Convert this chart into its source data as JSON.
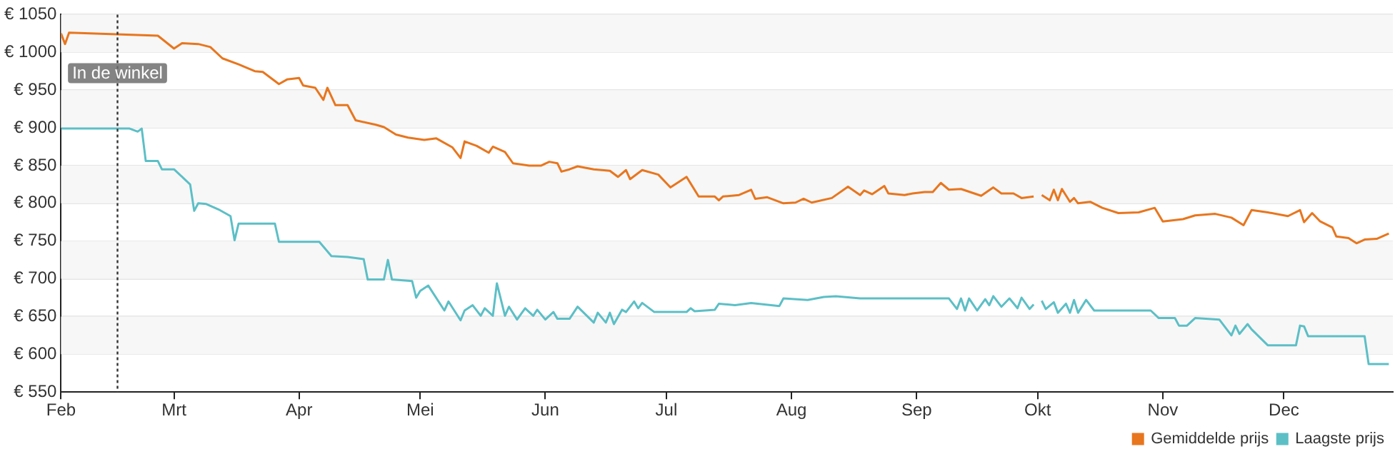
{
  "chart_data": {
    "type": "line",
    "legend": "bottom right",
    "grid": "y",
    "marker": "none",
    "line_style": "solid",
    "xlim": [
      "--02-01",
      "--12-28"
    ],
    "xticks": [
      {
        "value": "--02-01",
        "label": "Feb"
      },
      {
        "value": "--03-01",
        "label": "Mrt"
      },
      {
        "value": "--04-01",
        "label": "Apr"
      },
      {
        "value": "--05-01",
        "label": "Mei"
      },
      {
        "value": "--06-01",
        "label": "Jun"
      },
      {
        "value": "--07-01",
        "label": "Jul"
      },
      {
        "value": "--08-01",
        "label": "Aug"
      },
      {
        "value": "--09-01",
        "label": "Sep"
      },
      {
        "value": "--10-01",
        "label": "Okt"
      },
      {
        "value": "--11-01",
        "label": "Nov"
      },
      {
        "value": "--12-01",
        "label": "Dec"
      }
    ],
    "ylim": [
      550,
      1050
    ],
    "yticks": [
      {
        "value": 550,
        "label": "€ 550"
      },
      {
        "value": 600,
        "label": "€ 600"
      },
      {
        "value": 650,
        "label": "€ 650"
      },
      {
        "value": 700,
        "label": "€ 700"
      },
      {
        "value": 750,
        "label": "€ 750"
      },
      {
        "value": 800,
        "label": "€ 800"
      },
      {
        "value": 850,
        "label": "€ 850"
      },
      {
        "value": 900,
        "label": "€ 900"
      },
      {
        "value": 950,
        "label": "€ 950"
      },
      {
        "value": 1000,
        "label": "€ 1000"
      },
      {
        "value": 1050,
        "label": "€ 1050"
      }
    ],
    "ref_lines": [
      {
        "axis": "x",
        "value": "--02-15",
        "label": "In de winkel",
        "color": "#333333",
        "line_style": "dotted"
      }
    ],
    "series": [
      {
        "name": "Gemiddelde prijs",
        "color": "#e8761e",
        "x": [
          "--02-01",
          "--02-02",
          "--02-03",
          "--02-25",
          "--03-01",
          "--03-03",
          "--03-07",
          "--03-10",
          "--03-13",
          "--03-17",
          "--03-21",
          "--03-23",
          "--03-27",
          "--03-29",
          "--04-01",
          "--04-02",
          "--04-05",
          "--04-07",
          "--04-08",
          "--04-10",
          "--04-13",
          "--04-15",
          "--04-20",
          "--04-22",
          "--04-25",
          "--04-28",
          "--05-02",
          "--05-05",
          "--05-09",
          "--05-11",
          "--05-12",
          "--05-15",
          "--05-18",
          "--05-19",
          "--05-22",
          "--05-24",
          "--05-28",
          "--05-31",
          "--06-02",
          "--06-04",
          "--06-05",
          "--06-07",
          "--06-09",
          "--06-13",
          "--06-17",
          "--06-19",
          "--06-21",
          "--06-22",
          "--06-25",
          "--06-29",
          "--07-02",
          "--07-06",
          "--07-09",
          "--07-13",
          "--07-14",
          "--07-15",
          "--07-19",
          "--07-22",
          "--07-23",
          "--07-26",
          "--07-30",
          "--08-02",
          "--08-04",
          "--08-06",
          "--08-11",
          "--08-15",
          "--08-18",
          "--08-19",
          "--08-21",
          "--08-24",
          "--08-25",
          "--08-29",
          "--08-31",
          "--09-03",
          "--09-05",
          "--09-07",
          "--09-09",
          "--09-12",
          "--09-17",
          "--09-20",
          "--09-22",
          "--09-25",
          "--09-27",
          "--09-30",
          "--10-01",
          "--10-02",
          "--10-04",
          "--10-05",
          "--10-06",
          "--10-07",
          "--10-09",
          "--10-10",
          "--10-11",
          "--10-14",
          "--10-17",
          "--10-21",
          "--10-26",
          "--10-30",
          "--11-01",
          "--11-06",
          "--11-09",
          "--11-14",
          "--11-18",
          "--11-21",
          "--11-23",
          "--11-27",
          "--12-02",
          "--12-05",
          "--12-06",
          "--12-08",
          "--12-10",
          "--12-13",
          "--12-14",
          "--12-17",
          "--12-19",
          "--12-21",
          "--12-24",
          "--12-27"
        ],
        "values": [
          1025,
          1011,
          1026,
          1022,
          1005,
          1012,
          1011,
          1007,
          992,
          984,
          975,
          974,
          958,
          964,
          966,
          956,
          953,
          937,
          953,
          930,
          930,
          910,
          904,
          901,
          891,
          887,
          884,
          886,
          874,
          860,
          882,
          876,
          867,
          875,
          868,
          853,
          850,
          850,
          855,
          853,
          842,
          845,
          849,
          845,
          843,
          835,
          844,
          832,
          844,
          838,
          821,
          835,
          809,
          809,
          804,
          809,
          811,
          818,
          806,
          808,
          800,
          801,
          806,
          801,
          807,
          822,
          811,
          817,
          812,
          823,
          813,
          811,
          813,
          815,
          815,
          827,
          818,
          819,
          810,
          821,
          813,
          813,
          807,
          809,
          null,
          811,
          804,
          818,
          804,
          819,
          802,
          807,
          800,
          802,
          794,
          787,
          788,
          794,
          776,
          779,
          784,
          786,
          781,
          771,
          791,
          788,
          783,
          791,
          775,
          787,
          776,
          768,
          756,
          754,
          747,
          752,
          753,
          760
        ]
      },
      {
        "name": "Laagste prijs",
        "color": "#5cbfc6",
        "x": [
          "--02-01",
          "--02-18",
          "--02-20",
          "--02-21",
          "--02-22",
          "--02-25",
          "--02-26",
          "--03-01",
          "--03-05",
          "--03-06",
          "--03-07",
          "--03-09",
          "--03-12",
          "--03-15",
          "--03-16",
          "--03-17",
          "--03-26",
          "--03-27",
          "--04-06",
          "--04-09",
          "--04-13",
          "--04-17",
          "--04-18",
          "--04-22",
          "--04-23",
          "--04-24",
          "--04-29",
          "--04-30",
          "--05-01",
          "--05-03",
          "--05-07",
          "--05-08",
          "--05-11",
          "--05-12",
          "--05-14",
          "--05-16",
          "--05-17",
          "--05-19",
          "--05-20",
          "--05-22",
          "--05-23",
          "--05-25",
          "--05-27",
          "--05-29",
          "--05-30",
          "--06-01",
          "--06-03",
          "--06-04",
          "--06-07",
          "--06-09",
          "--06-13",
          "--06-14",
          "--06-16",
          "--06-17",
          "--06-18",
          "--06-20",
          "--06-21",
          "--06-23",
          "--06-24",
          "--06-25",
          "--06-28",
          "--07-06",
          "--07-07",
          "--07-08",
          "--07-13",
          "--07-14",
          "--07-18",
          "--07-22",
          "--07-29",
          "--07-30",
          "--08-05",
          "--08-09",
          "--08-12",
          "--08-18",
          "--09-04",
          "--09-09",
          "--09-11",
          "--09-12",
          "--09-13",
          "--09-14",
          "--09-16",
          "--09-18",
          "--09-19",
          "--09-20",
          "--09-22",
          "--09-24",
          "--09-26",
          "--09-27",
          "--09-29",
          "--09-30",
          "--10-01",
          "--10-02",
          "--10-03",
          "--10-05",
          "--10-06",
          "--10-08",
          "--10-09",
          "--10-10",
          "--10-11",
          "--10-13",
          "--10-15",
          "--10-29",
          "--10-31",
          "--11-04",
          "--11-05",
          "--11-07",
          "--11-09",
          "--11-15",
          "--11-18",
          "--11-19",
          "--11-20",
          "--11-22",
          "--11-23",
          "--11-27",
          "--12-04",
          "--12-05",
          "--12-06",
          "--12-07",
          "--12-21",
          "--12-22",
          "--12-27"
        ],
        "values": [
          899,
          899,
          895,
          899,
          856,
          856,
          845,
          845,
          825,
          790,
          800,
          799,
          792,
          783,
          751,
          773,
          773,
          749,
          749,
          730,
          729,
          726,
          699,
          699,
          725,
          699,
          697,
          675,
          684,
          691,
          658,
          670,
          645,
          658,
          665,
          651,
          661,
          651,
          694,
          651,
          663,
          646,
          661,
          651,
          659,
          646,
          656,
          647,
          647,
          663,
          642,
          655,
          642,
          655,
          640,
          659,
          656,
          670,
          661,
          668,
          656,
          656,
          661,
          657,
          659,
          667,
          665,
          668,
          664,
          674,
          672,
          676,
          677,
          674,
          674,
          674,
          660,
          674,
          658,
          674,
          658,
          673,
          665,
          677,
          663,
          674,
          661,
          675,
          660,
          666,
          null,
          671,
          660,
          669,
          655,
          667,
          655,
          672,
          655,
          672,
          658,
          658,
          648,
          648,
          638,
          638,
          648,
          646,
          625,
          638,
          627,
          640,
          633,
          612,
          612,
          638,
          637,
          624,
          624,
          587,
          587
        ]
      }
    ]
  }
}
